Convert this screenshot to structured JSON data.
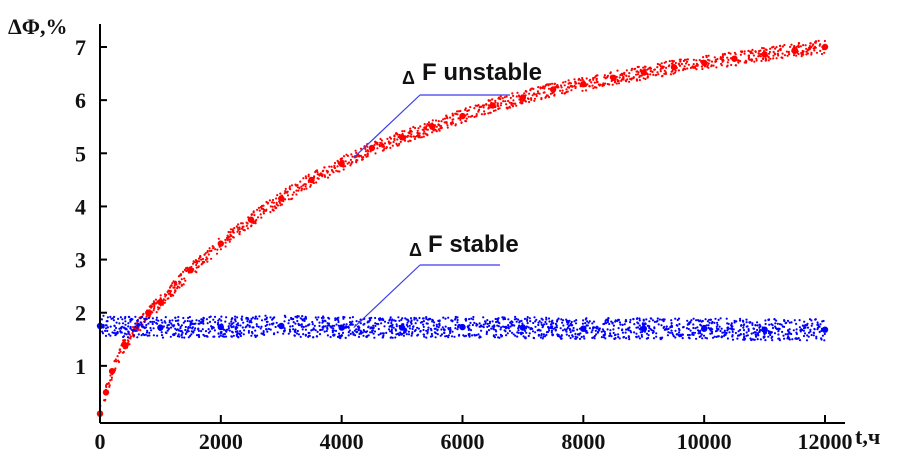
{
  "chart_data": {
    "type": "scatter",
    "ylabel": "ΔΦ,%",
    "xlabel": "t,ч",
    "xlim": [
      0,
      12000
    ],
    "ylim": [
      0,
      7.5
    ],
    "x_ticks": [
      0,
      2000,
      4000,
      6000,
      8000,
      10000,
      12000
    ],
    "y_ticks": [
      1,
      2,
      3,
      4,
      5,
      6,
      7
    ],
    "x_tick_labels": [
      "0",
      "2000",
      "4000",
      "6000",
      "8000",
      "10000",
      "12000"
    ],
    "y_tick_labels": [
      "1",
      "2",
      "3",
      "4",
      "5",
      "6",
      "7"
    ],
    "grid": false,
    "series": [
      {
        "color": "#ff0000",
        "x": [
          0,
          100,
          200,
          400,
          600,
          800,
          1000,
          1500,
          2000,
          2500,
          3000,
          3500,
          4000,
          4500,
          5000,
          5500,
          6000,
          6500,
          7000,
          7500,
          8000,
          8500,
          9000,
          9500,
          10000,
          10500,
          11000,
          11500,
          12000
        ],
        "y": [
          0.1,
          0.5,
          0.9,
          1.4,
          1.7,
          2.0,
          2.2,
          2.8,
          3.3,
          3.75,
          4.15,
          4.5,
          4.8,
          5.1,
          5.3,
          5.5,
          5.7,
          5.9,
          6.05,
          6.2,
          6.3,
          6.42,
          6.52,
          6.62,
          6.7,
          6.78,
          6.86,
          6.94,
          7.0
        ]
      },
      {
        "color": "#0000ff",
        "x": [
          0,
          1000,
          2000,
          3000,
          4000,
          5000,
          6000,
          7000,
          8000,
          9000,
          10000,
          11000,
          12000
        ],
        "y": [
          1.75,
          1.72,
          1.73,
          1.75,
          1.72,
          1.72,
          1.73,
          1.72,
          1.7,
          1.7,
          1.7,
          1.68,
          1.68
        ]
      }
    ],
    "annotations": [
      {
        "delta": "Δ",
        "label": "F  unstable",
        "series": 0,
        "at_x": 4200
      },
      {
        "delta": "Δ",
        "label": "F stable",
        "series": 1,
        "at_x": 4200
      }
    ]
  }
}
